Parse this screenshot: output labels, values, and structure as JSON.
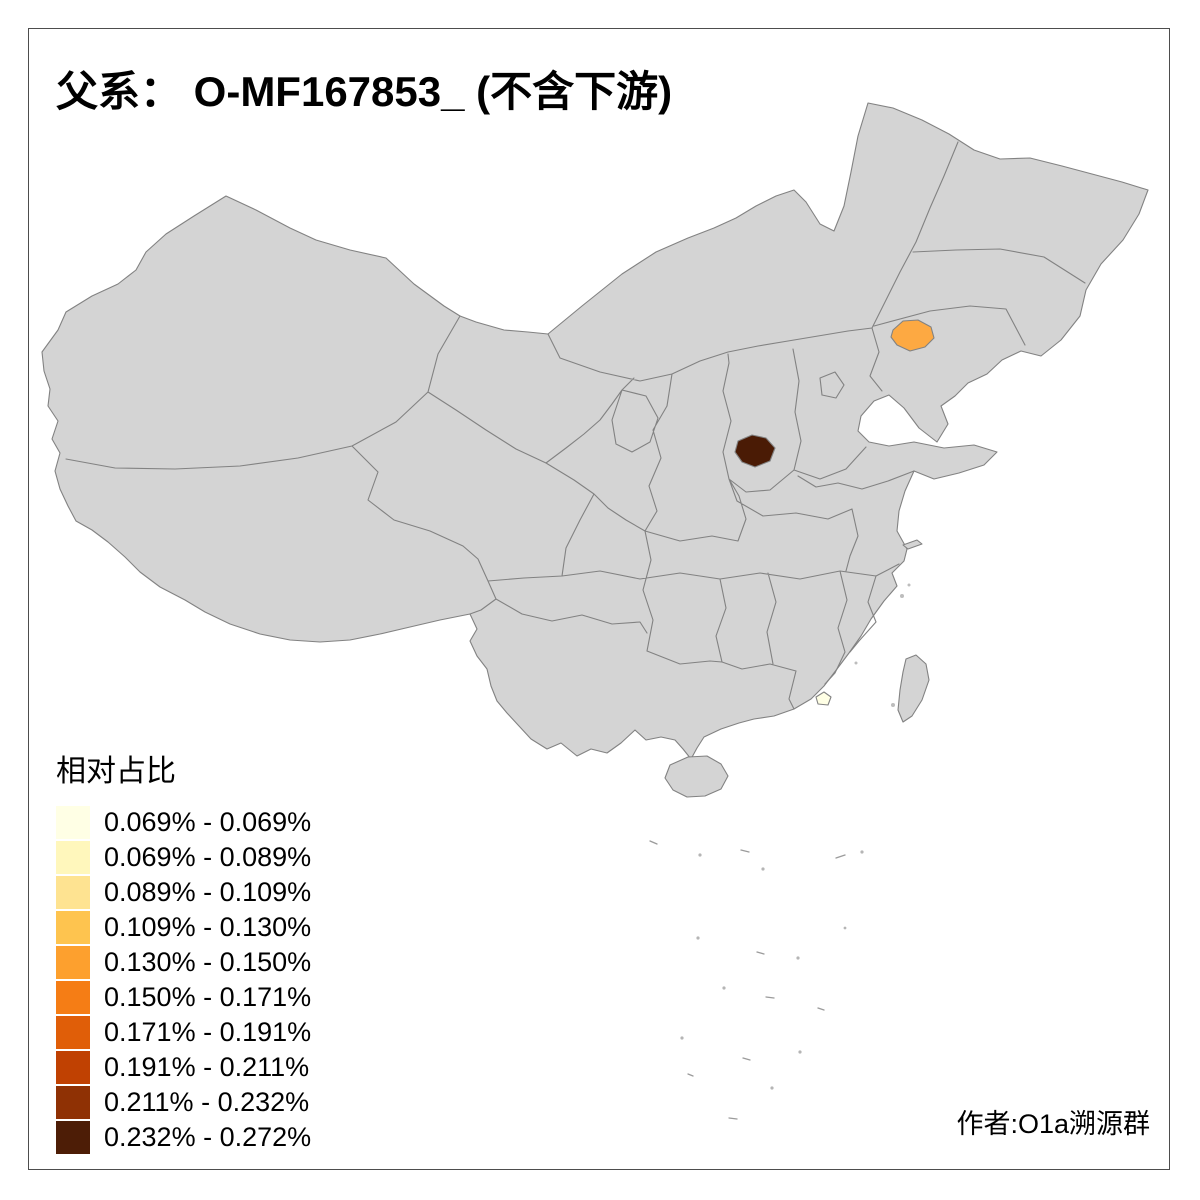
{
  "title": "父系： O-MF167853_ (不含下游)",
  "legend": {
    "title": "相对占比",
    "items": [
      {
        "label": "0.069% - 0.069%",
        "color": "#FFFFE5"
      },
      {
        "label": "0.069% - 0.089%",
        "color": "#FFF7BC"
      },
      {
        "label": "0.089% - 0.109%",
        "color": "#FEE391"
      },
      {
        "label": "0.109% - 0.130%",
        "color": "#FEC44F"
      },
      {
        "label": "0.130% - 0.150%",
        "color": "#FDA02E"
      },
      {
        "label": "0.150% - 0.171%",
        "color": "#F57D15"
      },
      {
        "label": "0.171% - 0.191%",
        "color": "#E05E08"
      },
      {
        "label": "0.191% - 0.211%",
        "color": "#C04102"
      },
      {
        "label": "0.211% - 0.232%",
        "color": "#8F3104"
      },
      {
        "label": "0.232% - 0.272%",
        "color": "#4D1D06"
      }
    ]
  },
  "footer": {
    "author": "作者:O1a溯源群"
  },
  "map": {
    "land_color": "#D4D4D4",
    "border_color": "#828282",
    "sea_color": "#FFFFFF",
    "regions": [
      {
        "id": "region-northeast",
        "color": "#FDA942"
      },
      {
        "id": "region-north-central",
        "color": "#4A1B05"
      },
      {
        "id": "region-southeast-coast",
        "color": "#FFFFE5"
      }
    ]
  },
  "chart_data": {
    "type": "heatmap",
    "title": "父系： O-MF167853_ (不含下游)",
    "legend_title": "相对占比",
    "bins": [
      {
        "range": "0.069% - 0.069%",
        "color": "#FFFFE5"
      },
      {
        "range": "0.069% - 0.089%",
        "color": "#FFF7BC"
      },
      {
        "range": "0.089% - 0.109%",
        "color": "#FEE391"
      },
      {
        "range": "0.109% - 0.130%",
        "color": "#FEC44F"
      },
      {
        "range": "0.130% - 0.150%",
        "color": "#FDA02E"
      },
      {
        "range": "0.150% - 0.171%",
        "color": "#F57D15"
      },
      {
        "range": "0.171% - 0.191%",
        "color": "#E05E08"
      },
      {
        "range": "0.191% - 0.211%",
        "color": "#C04102"
      },
      {
        "range": "0.211% - 0.232%",
        "color": "#8F3104"
      },
      {
        "range": "0.232% - 0.272%",
        "color": "#4D1D06"
      }
    ],
    "highlighted_regions": [
      {
        "area": "northeast province area",
        "color": "#FDA942",
        "bin": "0.130% - 0.150%"
      },
      {
        "area": "north-central province area",
        "color": "#4A1B05",
        "bin": "0.232% - 0.272%"
      },
      {
        "area": "southeast coastal area",
        "color": "#FFFFE5",
        "bin": "0.069% - 0.069%"
      }
    ]
  }
}
